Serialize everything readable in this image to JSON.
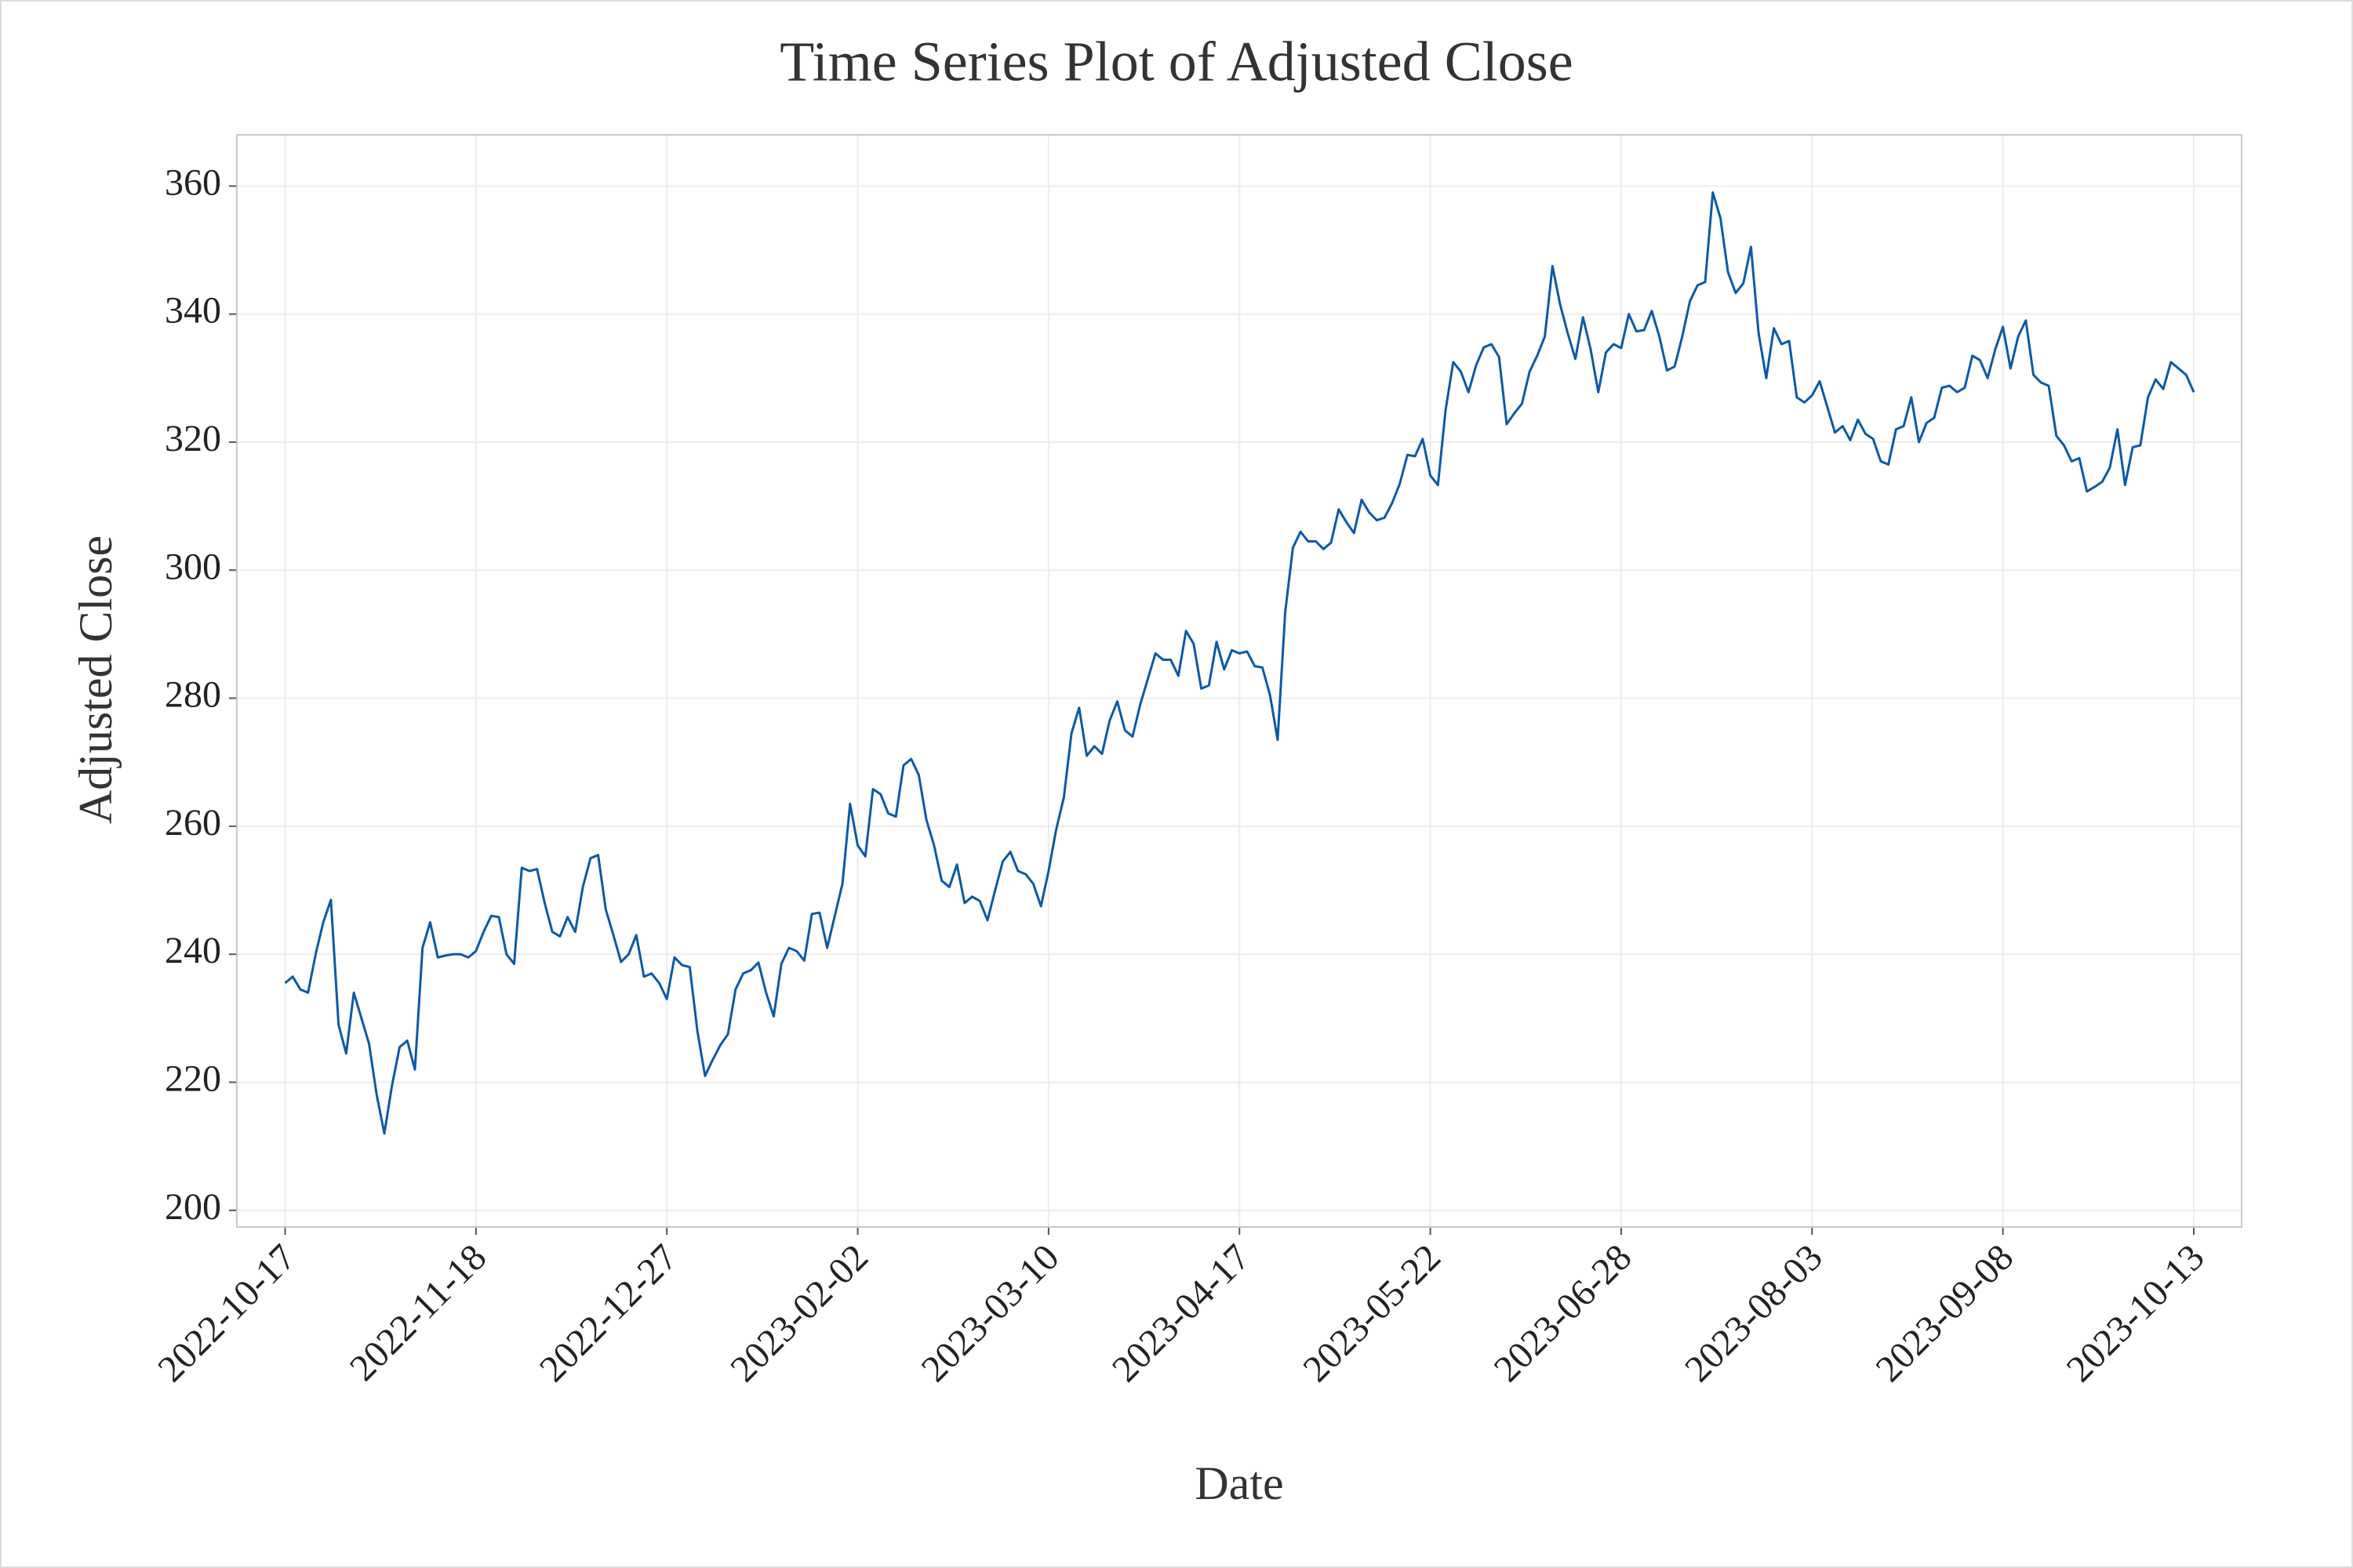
{
  "chart_data": {
    "type": "line",
    "title": "Time Series Plot of Adjusted Close",
    "x_label": "Date",
    "y_label": "Adjusted Close",
    "categories": [
      "2022-10-17",
      null,
      null,
      null,
      null,
      null,
      null,
      null,
      null,
      null,
      null,
      null,
      null,
      null,
      null,
      null,
      null,
      null,
      null,
      null,
      null,
      null,
      null,
      null,
      null,
      "2022-11-18",
      null,
      null,
      null,
      null,
      null,
      null,
      null,
      null,
      null,
      null,
      null,
      null,
      null,
      null,
      null,
      null,
      null,
      null,
      null,
      null,
      null,
      null,
      null,
      null,
      "2022-12-27",
      null,
      null,
      null,
      null,
      null,
      null,
      null,
      null,
      null,
      null,
      null,
      null,
      null,
      null,
      null,
      null,
      null,
      null,
      null,
      null,
      null,
      null,
      null,
      null,
      "2023-02-02",
      null,
      null,
      null,
      null,
      null,
      null,
      null,
      null,
      null,
      null,
      null,
      null,
      null,
      null,
      null,
      null,
      null,
      null,
      null,
      null,
      null,
      null,
      null,
      null,
      "2023-03-10",
      null,
      null,
      null,
      null,
      null,
      null,
      null,
      null,
      null,
      null,
      null,
      null,
      null,
      null,
      null,
      null,
      null,
      null,
      null,
      null,
      null,
      null,
      null,
      null,
      "2023-04-17",
      null,
      null,
      null,
      null,
      null,
      null,
      null,
      null,
      null,
      null,
      null,
      null,
      null,
      null,
      null,
      null,
      null,
      null,
      null,
      null,
      null,
      null,
      null,
      null,
      "2023-05-22",
      null,
      null,
      null,
      null,
      null,
      null,
      null,
      null,
      null,
      null,
      null,
      null,
      null,
      null,
      null,
      null,
      null,
      null,
      null,
      null,
      null,
      null,
      null,
      null,
      "2023-06-28",
      null,
      null,
      null,
      null,
      null,
      null,
      null,
      null,
      null,
      null,
      null,
      null,
      null,
      null,
      null,
      null,
      null,
      null,
      null,
      null,
      null,
      null,
      null,
      null,
      "2023-08-03",
      null,
      null,
      null,
      null,
      null,
      null,
      null,
      null,
      null,
      null,
      null,
      null,
      null,
      null,
      null,
      null,
      null,
      null,
      null,
      null,
      null,
      null,
      null,
      null,
      "2023-09-08",
      null,
      null,
      null,
      null,
      null,
      null,
      null,
      null,
      null,
      null,
      null,
      null,
      null,
      null,
      null,
      null,
      null,
      null,
      null,
      null,
      null,
      null,
      null,
      null,
      "2023-10-13"
    ],
    "values": [
      235.5,
      236.5,
      234.5,
      234,
      240,
      245,
      248.5,
      229,
      224.5,
      234,
      230,
      226,
      218,
      212,
      219.5,
      225.5,
      226.5,
      222,
      241,
      245,
      239.5,
      239.8,
      240,
      240,
      239.5,
      240.5,
      243.5,
      246,
      245.8,
      240,
      238.5,
      253.5,
      253,
      253.3,
      248,
      243.5,
      242.8,
      245.8,
      243.5,
      250.5,
      255,
      255.5,
      247,
      243,
      238.8,
      240,
      243,
      236.5,
      237,
      235.5,
      233,
      239.5,
      238.3,
      238,
      228,
      221,
      223.5,
      225.8,
      227.5,
      234.5,
      237,
      237.5,
      238.7,
      234,
      230.3,
      238.5,
      241,
      240.5,
      239,
      246.3,
      246.5,
      241,
      246,
      251,
      263.5,
      257,
      255.3,
      265.8,
      265,
      262,
      261.5,
      269.5,
      270.5,
      268,
      261,
      257,
      251.5,
      250.5,
      254,
      248,
      249,
      248.3,
      245.3,
      250,
      254.5,
      256,
      253,
      252.5,
      251,
      247.5,
      253,
      259.5,
      264.5,
      274.5,
      278.5,
      271,
      272.5,
      271.3,
      276.5,
      279.5,
      275,
      274,
      279,
      283,
      287,
      286,
      286,
      283.5,
      290.5,
      288.5,
      281.5,
      282,
      288.8,
      284.5,
      287.5,
      287,
      287.3,
      285,
      284.8,
      280.5,
      273.5,
      293.5,
      303.5,
      306,
      304.5,
      304.5,
      303.3,
      304.3,
      309.5,
      307.5,
      305.8,
      311,
      309,
      307.8,
      308.2,
      310.5,
      313.5,
      318,
      317.8,
      320.5,
      314.8,
      313.3,
      325,
      332.5,
      331,
      327.8,
      332,
      334.8,
      335.3,
      333.3,
      322.8,
      324.5,
      326,
      331,
      333.5,
      336.5,
      347.5,
      341.5,
      337,
      333,
      339.5,
      334.5,
      327.8,
      334,
      335.3,
      334.7,
      340,
      337.3,
      337.5,
      340.5,
      336.5,
      331.2,
      331.8,
      336.5,
      342,
      344.5,
      345,
      359,
      355,
      346.5,
      343.3,
      344.8,
      350.5,
      337,
      330,
      337.8,
      335.3,
      335.8,
      327,
      326.2,
      327.3,
      329.5,
      325.5,
      321.5,
      322.5,
      320.3,
      323.5,
      321.3,
      320.5,
      317,
      316.5,
      322,
      322.5,
      327,
      320,
      323,
      323.8,
      328.5,
      328.8,
      327.8,
      328.5,
      333.5,
      332.8,
      330,
      334.5,
      338,
      331.5,
      336.5,
      339,
      330.5,
      329.3,
      328.8,
      321,
      319.5,
      317,
      317.5,
      312.3,
      313,
      313.8,
      316,
      322,
      313.3,
      319.2,
      319.5,
      327,
      329.8,
      328.3,
      332.5,
      331.5,
      330.5,
      327.8
    ],
    "color": "#0b5aa6",
    "ylim": [
      197.4,
      368
    ],
    "yticks": [
      200,
      220,
      240,
      260,
      280,
      300,
      320,
      340,
      360
    ],
    "grid": true
  }
}
